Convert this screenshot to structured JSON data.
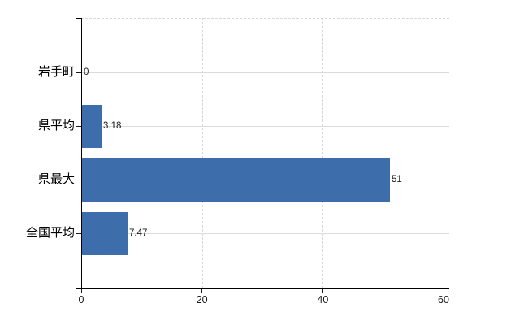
{
  "chart_data": {
    "type": "bar",
    "orientation": "horizontal",
    "title": "",
    "categories": [
      "岩手町",
      "県平均",
      "県最大",
      "全国平均"
    ],
    "values": [
      0,
      3.18,
      51,
      7.47
    ],
    "value_labels": [
      "0",
      "3.18",
      "51",
      "7.47"
    ],
    "x_tick_labels": [
      "0",
      "20",
      "40",
      "60"
    ],
    "x_tick_values": [
      0,
      20,
      40,
      60
    ],
    "xlim": [
      0,
      60
    ],
    "grid": "on",
    "legend": "none",
    "colors": {
      "bar": "#3e6dab",
      "grid_solid": "#d9dcd6",
      "grid_dashed": "#d7d7d7",
      "axis": "#000000",
      "text": "#000000",
      "background": "#ffffff"
    }
  }
}
